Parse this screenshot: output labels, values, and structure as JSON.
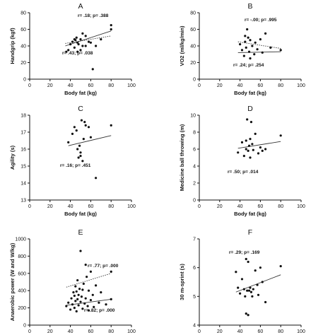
{
  "chart_data": [
    {
      "type": "scatter",
      "panel_label": "A",
      "xlabel": "Body fat (kg)",
      "ylabel": "Handgrip (kgf)",
      "xlim": [
        0,
        100
      ],
      "ylim": [
        0,
        80
      ],
      "xticks": [
        0,
        20,
        40,
        60,
        80,
        100
      ],
      "yticks": [
        0,
        20,
        40,
        60,
        80
      ],
      "points": [
        {
          "x": 36,
          "y": 33
        },
        {
          "x": 38,
          "y": 35
        },
        {
          "x": 40,
          "y": 42
        },
        {
          "x": 42,
          "y": 45
        },
        {
          "x": 44,
          "y": 38
        },
        {
          "x": 45,
          "y": 47
        },
        {
          "x": 46,
          "y": 50
        },
        {
          "x": 47,
          "y": 44
        },
        {
          "x": 48,
          "y": 42
        },
        {
          "x": 50,
          "y": 48
        },
        {
          "x": 52,
          "y": 55
        },
        {
          "x": 55,
          "y": 40
        },
        {
          "x": 58,
          "y": 45
        },
        {
          "x": 60,
          "y": 44
        },
        {
          "x": 62,
          "y": 12
        },
        {
          "x": 65,
          "y": 40
        },
        {
          "x": 70,
          "y": 48
        },
        {
          "x": 80,
          "y": 65
        },
        {
          "x": 80,
          "y": 60
        },
        {
          "x": 47,
          "y": 33
        },
        {
          "x": 50,
          "y": 35
        },
        {
          "x": 55,
          "y": 52
        },
        {
          "x": 44,
          "y": 48
        },
        {
          "x": 52,
          "y": 40
        }
      ],
      "fits": [
        {
          "style": "dotted",
          "x": [
            35,
            80
          ],
          "y": [
            43,
            52
          ]
        },
        {
          "style": "solid",
          "x": [
            35,
            80
          ],
          "y": [
            40,
            58
          ]
        }
      ],
      "annotations": [
        "r= .18; p= .388",
        "r= .43; p= .038"
      ]
    },
    {
      "type": "scatter",
      "panel_label": "B",
      "xlabel": "Body fat (kg)",
      "ylabel": "VO2 (ml/kg/min)",
      "xlim": [
        0,
        100
      ],
      "ylim": [
        0,
        80
      ],
      "xticks": [
        0,
        20,
        40,
        60,
        80,
        100
      ],
      "yticks": [
        0,
        20,
        40,
        60,
        80
      ],
      "points": [
        {
          "x": 40,
          "y": 42
        },
        {
          "x": 42,
          "y": 35
        },
        {
          "x": 44,
          "y": 28
        },
        {
          "x": 45,
          "y": 45
        },
        {
          "x": 46,
          "y": 38
        },
        {
          "x": 47,
          "y": 60
        },
        {
          "x": 48,
          "y": 50
        },
        {
          "x": 49,
          "y": 33
        },
        {
          "x": 50,
          "y": 47
        },
        {
          "x": 52,
          "y": 40
        },
        {
          "x": 54,
          "y": 30
        },
        {
          "x": 55,
          "y": 44
        },
        {
          "x": 57,
          "y": 36
        },
        {
          "x": 60,
          "y": 48
        },
        {
          "x": 62,
          "y": 32
        },
        {
          "x": 65,
          "y": 55
        },
        {
          "x": 70,
          "y": 38
        },
        {
          "x": 80,
          "y": 35
        },
        {
          "x": 50,
          "y": 25
        },
        {
          "x": 45,
          "y": 52
        }
      ],
      "fits": [
        {
          "style": "dotted",
          "x": [
            38,
            80
          ],
          "y": [
            45,
            37
          ]
        },
        {
          "style": "solid",
          "x": [
            38,
            80
          ],
          "y": [
            32,
            33
          ]
        }
      ],
      "annotations": [
        "r= -.00; p= .995",
        "r= .24; p= .254"
      ]
    },
    {
      "type": "scatter",
      "panel_label": "C",
      "xlabel": "Body fat (kg)",
      "ylabel": "Agility (s)",
      "xlim": [
        0,
        100
      ],
      "ylim": [
        13,
        18
      ],
      "xticks": [
        0,
        20,
        40,
        60,
        80,
        100
      ],
      "yticks": [
        13,
        14,
        15,
        16,
        17,
        18
      ],
      "points": [
        {
          "x": 38,
          "y": 16.4
        },
        {
          "x": 42,
          "y": 16.9
        },
        {
          "x": 44,
          "y": 17.3
        },
        {
          "x": 46,
          "y": 17.1
        },
        {
          "x": 47,
          "y": 16.0
        },
        {
          "x": 48,
          "y": 15.5
        },
        {
          "x": 49,
          "y": 16.2
        },
        {
          "x": 50,
          "y": 15.6
        },
        {
          "x": 51,
          "y": 17.7
        },
        {
          "x": 52,
          "y": 15.3
        },
        {
          "x": 53,
          "y": 16.6
        },
        {
          "x": 55,
          "y": 17.4
        },
        {
          "x": 58,
          "y": 17.3
        },
        {
          "x": 60,
          "y": 16.7
        },
        {
          "x": 65,
          "y": 14.3
        },
        {
          "x": 80,
          "y": 17.4
        },
        {
          "x": 50,
          "y": 15.8
        },
        {
          "x": 54,
          "y": 17.6
        }
      ],
      "fits": [
        {
          "style": "solid",
          "x": [
            38,
            80
          ],
          "y": [
            16.2,
            16.8
          ]
        }
      ],
      "annotations": [
        "r= .16; p= .451"
      ]
    },
    {
      "type": "scatter",
      "panel_label": "D",
      "xlabel": "Body fat (kg)",
      "ylabel": "Medicine ball throwing (m)",
      "xlim": [
        0,
        100
      ],
      "ylim": [
        0,
        10
      ],
      "xticks": [
        0,
        20,
        40,
        60,
        80,
        100
      ],
      "yticks": [
        0,
        2,
        4,
        6,
        8,
        10
      ],
      "points": [
        {
          "x": 38,
          "y": 5.6
        },
        {
          "x": 42,
          "y": 6.8
        },
        {
          "x": 44,
          "y": 5.2
        },
        {
          "x": 46,
          "y": 6.0
        },
        {
          "x": 47,
          "y": 9.5
        },
        {
          "x": 48,
          "y": 5.8
        },
        {
          "x": 49,
          "y": 6.4
        },
        {
          "x": 50,
          "y": 7.2
        },
        {
          "x": 51,
          "y": 9.2
        },
        {
          "x": 52,
          "y": 6.6
        },
        {
          "x": 53,
          "y": 5.9
        },
        {
          "x": 55,
          "y": 7.8
        },
        {
          "x": 58,
          "y": 5.5
        },
        {
          "x": 60,
          "y": 6.2
        },
        {
          "x": 62,
          "y": 5.8
        },
        {
          "x": 65,
          "y": 6.0
        },
        {
          "x": 80,
          "y": 7.6
        },
        {
          "x": 50,
          "y": 5.0
        },
        {
          "x": 46,
          "y": 7.0
        }
      ],
      "fits": [
        {
          "style": "solid",
          "x": [
            38,
            80
          ],
          "y": [
            6.1,
            6.9
          ]
        }
      ],
      "annotations": [
        "r= .50; p= .014"
      ]
    },
    {
      "type": "scatter",
      "panel_label": "E",
      "xlabel": "Body fat (kg)",
      "ylabel": "Anaerobic power (W and W/kg)",
      "xlim": [
        0,
        100
      ],
      "ylim": [
        0,
        1000
      ],
      "xticks": [
        0,
        20,
        40,
        60,
        80,
        100
      ],
      "yticks": [
        0,
        200,
        400,
        600,
        800,
        1000
      ],
      "points": [
        {
          "x": 36,
          "y": 220
        },
        {
          "x": 38,
          "y": 260
        },
        {
          "x": 40,
          "y": 180
        },
        {
          "x": 41,
          "y": 310
        },
        {
          "x": 42,
          "y": 240
        },
        {
          "x": 43,
          "y": 380
        },
        {
          "x": 44,
          "y": 200
        },
        {
          "x": 45,
          "y": 450
        },
        {
          "x": 45,
          "y": 280
        },
        {
          "x": 46,
          "y": 160
        },
        {
          "x": 47,
          "y": 520
        },
        {
          "x": 47,
          "y": 300
        },
        {
          "x": 48,
          "y": 350
        },
        {
          "x": 48,
          "y": 230
        },
        {
          "x": 49,
          "y": 420
        },
        {
          "x": 50,
          "y": 270
        },
        {
          "x": 50,
          "y": 860
        },
        {
          "x": 51,
          "y": 330
        },
        {
          "x": 52,
          "y": 190
        },
        {
          "x": 53,
          "y": 480
        },
        {
          "x": 54,
          "y": 250
        },
        {
          "x": 55,
          "y": 700
        },
        {
          "x": 55,
          "y": 310
        },
        {
          "x": 56,
          "y": 560
        },
        {
          "x": 57,
          "y": 220
        },
        {
          "x": 58,
          "y": 400
        },
        {
          "x": 60,
          "y": 290
        },
        {
          "x": 60,
          "y": 620
        },
        {
          "x": 62,
          "y": 350
        },
        {
          "x": 63,
          "y": 210
        },
        {
          "x": 65,
          "y": 460
        },
        {
          "x": 68,
          "y": 260
        },
        {
          "x": 70,
          "y": 380
        },
        {
          "x": 75,
          "y": 240
        },
        {
          "x": 80,
          "y": 300
        },
        {
          "x": 80,
          "y": 620
        },
        {
          "x": 44,
          "y": 340
        },
        {
          "x": 52,
          "y": 410
        },
        {
          "x": 58,
          "y": 170
        },
        {
          "x": 46,
          "y": 390
        }
      ],
      "fits": [
        {
          "style": "dotted",
          "x": [
            36,
            80
          ],
          "y": [
            440,
            600
          ]
        },
        {
          "style": "solid",
          "x": [
            36,
            80
          ],
          "y": [
            230,
            300
          ]
        }
      ],
      "annotations": [
        "r= .77; p= .000",
        "r= .82; p= .000"
      ]
    },
    {
      "type": "scatter",
      "panel_label": "F",
      "xlabel": "Body fat (kg)",
      "ylabel": "30 m-sprint (s)",
      "xlim": [
        0,
        100
      ],
      "ylim": [
        4,
        7
      ],
      "xticks": [
        0,
        20,
        40,
        60,
        80,
        100
      ],
      "yticks": [
        4,
        5,
        6,
        7
      ],
      "points": [
        {
          "x": 36,
          "y": 5.85
        },
        {
          "x": 38,
          "y": 5.3
        },
        {
          "x": 40,
          "y": 5.1
        },
        {
          "x": 42,
          "y": 5.6
        },
        {
          "x": 44,
          "y": 5.25
        },
        {
          "x": 45,
          "y": 5.0
        },
        {
          "x": 46,
          "y": 6.3
        },
        {
          "x": 47,
          "y": 5.2
        },
        {
          "x": 48,
          "y": 6.2
        },
        {
          "x": 48,
          "y": 4.35
        },
        {
          "x": 49,
          "y": 5.2
        },
        {
          "x": 50,
          "y": 5.3
        },
        {
          "x": 51,
          "y": 5.15
        },
        {
          "x": 52,
          "y": 5.0
        },
        {
          "x": 53,
          "y": 5.25
        },
        {
          "x": 55,
          "y": 5.9
        },
        {
          "x": 57,
          "y": 5.4
        },
        {
          "x": 58,
          "y": 5.05
        },
        {
          "x": 60,
          "y": 6.0
        },
        {
          "x": 62,
          "y": 5.5
        },
        {
          "x": 65,
          "y": 4.8
        },
        {
          "x": 80,
          "y": 6.05
        },
        {
          "x": 46,
          "y": 4.4
        }
      ],
      "fits": [
        {
          "style": "solid",
          "x": [
            36,
            80
          ],
          "y": [
            5.15,
            5.75
          ]
        }
      ],
      "annotations": [
        "r= .29; p= .169"
      ]
    }
  ]
}
